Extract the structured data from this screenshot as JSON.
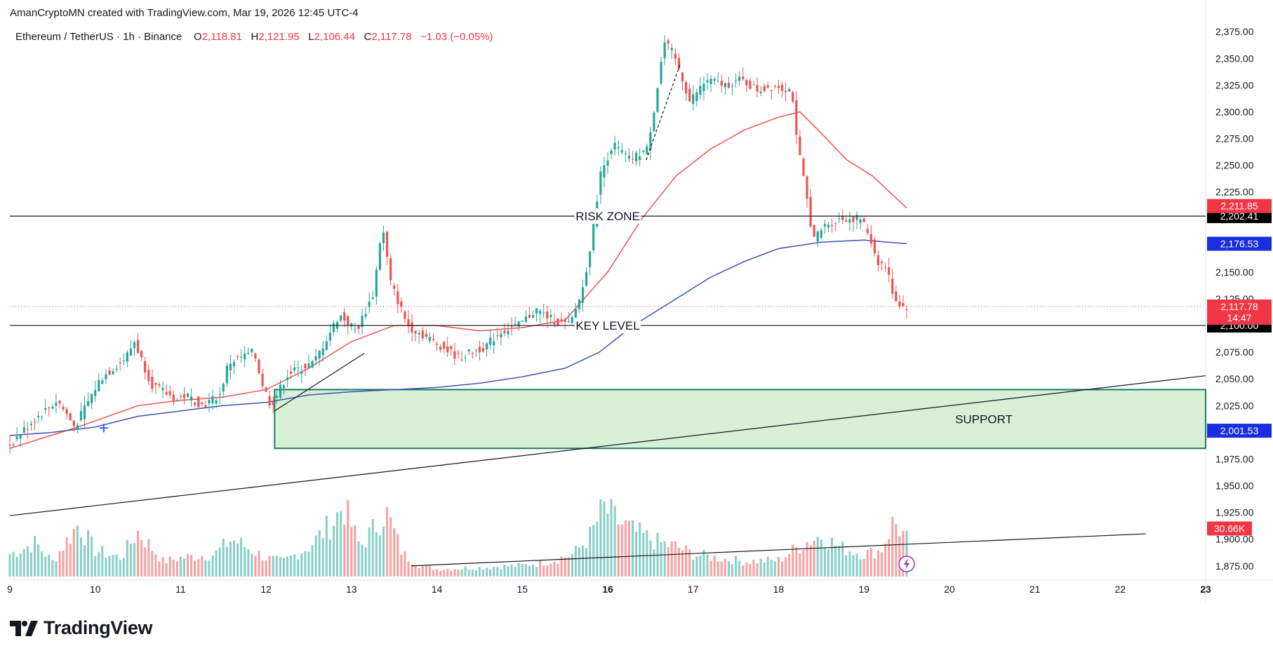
{
  "attribution": "AmanCryptoMN created with TradingView.com, Mar 19, 2026 12:45 UTC-4",
  "legend": {
    "symbol": "Ethereum / TetherUS · 1h · Binance",
    "o_label": "O",
    "o": "2,118.81",
    "h_label": "H",
    "h": "2,121.95",
    "l_label": "L",
    "l": "2,106.44",
    "c_label": "C",
    "c": "2,117.78",
    "change": "−1.03 (−0.05%)"
  },
  "brand": {
    "name": "TradingView",
    "logo_icon": "tradingview-logo-icon"
  },
  "colors": {
    "up": "#26a69a",
    "down": "#ef5350",
    "ma_fast": "#ef5350",
    "ma_slow": "#3f51b5",
    "support_fill": "#d8f0d6",
    "support_border": "#1b7b63",
    "tag_red": "#f23645",
    "tag_blue": "#1a2ee0",
    "tag_black": "#000000"
  },
  "chart_data": {
    "type": "candlestick",
    "title": "Ethereum / TetherUS · 1h · Binance",
    "x_ticks": [
      {
        "label": "9",
        "day": 9,
        "bold": false
      },
      {
        "label": "10",
        "day": 10,
        "bold": false
      },
      {
        "label": "11",
        "day": 11,
        "bold": false
      },
      {
        "label": "12",
        "day": 12,
        "bold": false
      },
      {
        "label": "13",
        "day": 13,
        "bold": false
      },
      {
        "label": "14",
        "day": 14,
        "bold": false
      },
      {
        "label": "15",
        "day": 15,
        "bold": false
      },
      {
        "label": "16",
        "day": 16,
        "bold": true
      },
      {
        "label": "17",
        "day": 17,
        "bold": false
      },
      {
        "label": "18",
        "day": 18,
        "bold": false
      },
      {
        "label": "19",
        "day": 19,
        "bold": false
      },
      {
        "label": "20",
        "day": 20,
        "bold": false
      },
      {
        "label": "21",
        "day": 21,
        "bold": false
      },
      {
        "label": "22",
        "day": 22,
        "bold": false
      },
      {
        "label": "23",
        "day": 23,
        "bold": true
      }
    ],
    "y_ticks": [
      "1,875.00",
      "1,900.00",
      "1,925.00",
      "1,950.00",
      "1,975.00",
      "2,000.00",
      "2,025.00",
      "2,050.00",
      "2,075.00",
      "2,100.00",
      "2,125.00",
      "2,150.00",
      "2,175.00",
      "2,200.00",
      "2,225.00",
      "2,250.00",
      "2,275.00",
      "2,300.00",
      "2,325.00",
      "2,350.00",
      "2,375.00"
    ],
    "y_tick_values": [
      1875,
      1900,
      1925,
      1950,
      1975,
      2000,
      2025,
      2050,
      2075,
      2100,
      2125,
      2150,
      2175,
      2200,
      2225,
      2250,
      2275,
      2300,
      2325,
      2350,
      2375
    ],
    "ylim": [
      1865,
      2385
    ],
    "xlim": [
      9.0,
      23.0
    ],
    "price_path": [
      [
        9.0,
        1985
      ],
      [
        9.3,
        2010
      ],
      [
        9.6,
        2030
      ],
      [
        9.8,
        2005
      ],
      [
        10.1,
        2050
      ],
      [
        10.4,
        2070
      ],
      [
        10.5,
        2085
      ],
      [
        10.7,
        2045
      ],
      [
        11.0,
        2030
      ],
      [
        11.1,
        2035
      ],
      [
        11.3,
        2025
      ],
      [
        11.5,
        2035
      ],
      [
        11.6,
        2065
      ],
      [
        11.9,
        2075
      ],
      [
        12.0,
        2045
      ],
      [
        12.1,
        2025
      ],
      [
        12.3,
        2055
      ],
      [
        12.6,
        2065
      ],
      [
        12.9,
        2110
      ],
      [
        13.1,
        2095
      ],
      [
        13.3,
        2130
      ],
      [
        13.4,
        2195
      ],
      [
        13.5,
        2140
      ],
      [
        13.7,
        2100
      ],
      [
        13.9,
        2090
      ],
      [
        14.1,
        2080
      ],
      [
        14.3,
        2070
      ],
      [
        14.6,
        2080
      ],
      [
        14.8,
        2095
      ],
      [
        15.0,
        2100
      ],
      [
        15.2,
        2115
      ],
      [
        15.4,
        2105
      ],
      [
        15.6,
        2100
      ],
      [
        15.75,
        2135
      ],
      [
        15.85,
        2180
      ],
      [
        15.95,
        2240
      ],
      [
        16.1,
        2270
      ],
      [
        16.3,
        2255
      ],
      [
        16.5,
        2265
      ],
      [
        16.6,
        2310
      ],
      [
        16.7,
        2365
      ],
      [
        16.8,
        2355
      ],
      [
        16.9,
        2335
      ],
      [
        17.0,
        2310
      ],
      [
        17.2,
        2330
      ],
      [
        17.4,
        2325
      ],
      [
        17.6,
        2330
      ],
      [
        17.8,
        2320
      ],
      [
        18.0,
        2325
      ],
      [
        18.2,
        2320
      ],
      [
        18.25,
        2275
      ],
      [
        18.35,
        2230
      ],
      [
        18.45,
        2180
      ],
      [
        18.6,
        2195
      ],
      [
        18.8,
        2200
      ],
      [
        19.0,
        2200
      ],
      [
        19.1,
        2185
      ],
      [
        19.2,
        2160
      ],
      [
        19.3,
        2155
      ],
      [
        19.4,
        2125
      ],
      [
        19.5,
        2117.78
      ]
    ],
    "ma_fast": [
      [
        9.0,
        1985
      ],
      [
        9.8,
        2005
      ],
      [
        10.5,
        2025
      ],
      [
        11.0,
        2030
      ],
      [
        11.5,
        2033
      ],
      [
        12.0,
        2040
      ],
      [
        12.5,
        2060
      ],
      [
        13.0,
        2085
      ],
      [
        13.5,
        2100
      ],
      [
        14.0,
        2100
      ],
      [
        14.5,
        2095
      ],
      [
        15.0,
        2098
      ],
      [
        15.5,
        2105
      ],
      [
        16.0,
        2150
      ],
      [
        16.4,
        2200
      ],
      [
        16.8,
        2240
      ],
      [
        17.2,
        2265
      ],
      [
        17.6,
        2283
      ],
      [
        18.0,
        2295
      ],
      [
        18.25,
        2300
      ],
      [
        18.5,
        2280
      ],
      [
        18.8,
        2255
      ],
      [
        19.1,
        2240
      ],
      [
        19.3,
        2225
      ],
      [
        19.5,
        2210
      ]
    ],
    "ma_slow": [
      [
        9.0,
        1997
      ],
      [
        9.5,
        2000
      ],
      [
        10.0,
        2005
      ],
      [
        10.5,
        2015
      ],
      [
        11.0,
        2020
      ],
      [
        11.5,
        2025
      ],
      [
        12.0,
        2028
      ],
      [
        12.5,
        2035
      ],
      [
        13.0,
        2038
      ],
      [
        13.5,
        2040
      ],
      [
        14.0,
        2042
      ],
      [
        14.5,
        2046
      ],
      [
        15.0,
        2052
      ],
      [
        15.5,
        2060
      ],
      [
        15.9,
        2075
      ],
      [
        16.3,
        2100
      ],
      [
        16.8,
        2125
      ],
      [
        17.2,
        2145
      ],
      [
        17.6,
        2160
      ],
      [
        18.0,
        2172
      ],
      [
        18.5,
        2178
      ],
      [
        19.0,
        2180
      ],
      [
        19.5,
        2176.53
      ]
    ],
    "volume_max": 96,
    "volume_profile": [
      [
        9.0,
        30
      ],
      [
        9.3,
        45
      ],
      [
        9.5,
        20
      ],
      [
        9.8,
        70
      ],
      [
        10.0,
        35
      ],
      [
        10.3,
        25
      ],
      [
        10.5,
        60
      ],
      [
        10.8,
        20
      ],
      [
        11.0,
        25
      ],
      [
        11.4,
        30
      ],
      [
        11.6,
        50
      ],
      [
        12.0,
        25
      ],
      [
        12.2,
        20
      ],
      [
        12.5,
        40
      ],
      [
        12.8,
        75
      ],
      [
        12.9,
        96
      ],
      [
        13.1,
        40
      ],
      [
        13.3,
        70
      ],
      [
        13.4,
        88
      ],
      [
        13.6,
        30
      ],
      [
        13.8,
        15
      ],
      [
        14.0,
        10
      ],
      [
        14.5,
        12
      ],
      [
        15.0,
        15
      ],
      [
        15.3,
        20
      ],
      [
        15.6,
        30
      ],
      [
        15.8,
        55
      ],
      [
        15.95,
        92
      ],
      [
        16.1,
        75
      ],
      [
        16.3,
        60
      ],
      [
        16.6,
        45
      ],
      [
        16.8,
        40
      ],
      [
        17.0,
        30
      ],
      [
        17.3,
        25
      ],
      [
        17.6,
        20
      ],
      [
        18.0,
        22
      ],
      [
        18.3,
        45
      ],
      [
        18.5,
        55
      ],
      [
        18.7,
        40
      ],
      [
        19.0,
        30
      ],
      [
        19.2,
        35
      ],
      [
        19.35,
        75
      ],
      [
        19.5,
        50
      ]
    ],
    "levels": [
      {
        "name": "risk-zone",
        "label": "RISK ZONE",
        "price": 2202.41,
        "tag": "2,202.41",
        "tag_color": "#000000"
      },
      {
        "name": "key-level",
        "label": "KEY LEVEL",
        "price": 2100.0,
        "tag": "2,100.00",
        "tag_color": "#000000"
      }
    ],
    "support_zone": {
      "label": "SUPPORT",
      "from_day": 12.1,
      "to_day": 23.0,
      "low": 1985,
      "high": 2040,
      "tag": "2,001.53",
      "tag_price": 2001.53
    },
    "trendlines": [
      {
        "name": "long-trendline",
        "from": [
          9.0,
          1922
        ],
        "to": [
          23.0,
          2053
        ]
      },
      {
        "name": "volume-trendline",
        "from": [
          13.7,
          1875
        ],
        "to": [
          22.3,
          1905
        ]
      },
      {
        "name": "breakout-trendline",
        "from": [
          12.1,
          2020
        ],
        "to": [
          13.15,
          2074
        ]
      },
      {
        "name": "dashed-trendline",
        "from": [
          16.45,
          2255
        ],
        "to": [
          16.85,
          2345
        ]
      }
    ],
    "price_tags": [
      {
        "name": "ma-fast-tag",
        "text": "2,211.85",
        "price": 2211.85,
        "color": "#f23645"
      },
      {
        "name": "ma-slow-tag",
        "text": "2,176.53",
        "price": 2176.53,
        "color": "#1a2ee0"
      },
      {
        "name": "last-price-tag",
        "text": "2,117.78",
        "sub": "14:47",
        "price": 2117.78,
        "color": "#f23645"
      },
      {
        "name": "volume-tag",
        "text": "30.66K",
        "price": 1910,
        "color": "#f23645"
      }
    ]
  }
}
